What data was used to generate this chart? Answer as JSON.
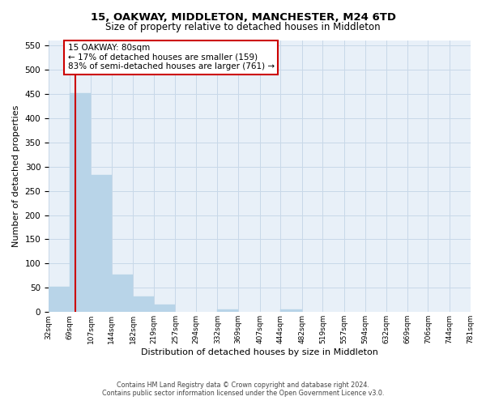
{
  "title": "15, OAKWAY, MIDDLETON, MANCHESTER, M24 6TD",
  "subtitle": "Size of property relative to detached houses in Middleton",
  "xlabel": "Distribution of detached houses by size in Middleton",
  "ylabel": "Number of detached properties",
  "bins": [
    32,
    69,
    107,
    144,
    182,
    219,
    257,
    294,
    332,
    369,
    407,
    444,
    482,
    519,
    557,
    594,
    632,
    669,
    706,
    744,
    781
  ],
  "bin_labels": [
    "32sqm",
    "69sqm",
    "107sqm",
    "144sqm",
    "182sqm",
    "219sqm",
    "257sqm",
    "294sqm",
    "332sqm",
    "369sqm",
    "407sqm",
    "444sqm",
    "482sqm",
    "519sqm",
    "557sqm",
    "594sqm",
    "632sqm",
    "669sqm",
    "706sqm",
    "744sqm",
    "781sqm"
  ],
  "counts": [
    53,
    451,
    283,
    78,
    32,
    16,
    0,
    0,
    6,
    0,
    0,
    5,
    0,
    0,
    0,
    0,
    0,
    0,
    0,
    0
  ],
  "bar_color": "#b8d4e8",
  "vline_x": 80,
  "vline_color": "#cc0000",
  "annotation_title": "15 OAKWAY: 80sqm",
  "annotation_line1": "← 17% of detached houses are smaller (159)",
  "annotation_line2": "83% of semi-detached houses are larger (761) →",
  "annotation_box_edge": "#cc0000",
  "ylim": [
    0,
    560
  ],
  "yticks": [
    0,
    50,
    100,
    150,
    200,
    250,
    300,
    350,
    400,
    450,
    500,
    550
  ],
  "footer_line1": "Contains HM Land Registry data © Crown copyright and database right 2024.",
  "footer_line2": "Contains public sector information licensed under the Open Government Licence v3.0.",
  "grid_color": "#c8d8e8",
  "background_color": "#e8f0f8"
}
